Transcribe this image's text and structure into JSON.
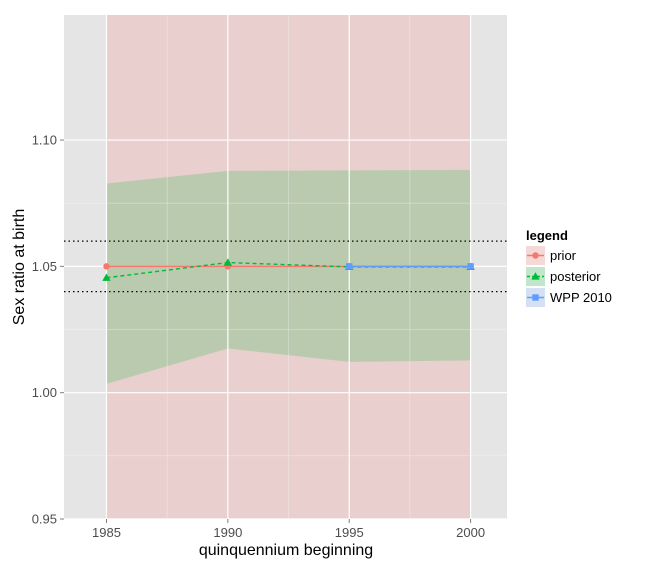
{
  "chart_data": {
    "type": "line",
    "title": "",
    "xlabel": "quinquennium beginning",
    "ylabel": "Sex ratio at birth",
    "xlim": [
      1983.25,
      2001.5
    ],
    "ylim": [
      0.95,
      1.1495
    ],
    "x_ticks": [
      1985,
      1990,
      1995,
      2000
    ],
    "x_tick_labels": [
      "1985",
      "1990",
      "1995",
      "2000"
    ],
    "y_ticks": [
      0.95,
      1.0,
      1.05,
      1.1
    ],
    "y_tick_labels": [
      "0.95",
      "1.00",
      "1.05",
      "1.10"
    ],
    "grid": true,
    "background_color": "#e5e5e5",
    "reference_lines": [
      1.04,
      1.06
    ],
    "bands": [
      {
        "name": "prior",
        "color": "#f8766d",
        "opacity": 0.2,
        "x": [
          1985,
          2000
        ],
        "lower": [
          0.95,
          0.95
        ],
        "upper": [
          1.1495,
          1.1495
        ]
      },
      {
        "name": "posterior",
        "color": "#00ba38",
        "opacity": 0.2,
        "x": [
          1985,
          1990,
          1995,
          2000
        ],
        "lower": [
          1.0035,
          1.0175,
          1.0122,
          1.0128
        ],
        "upper": [
          1.0828,
          1.0878,
          1.088,
          1.0882
        ]
      }
    ],
    "series": [
      {
        "name": "prior",
        "color": "#f8766d",
        "marker": "circle",
        "dash": "solid",
        "x": [
          1985,
          1990,
          1995,
          2000
        ],
        "values": [
          1.05,
          1.05,
          1.05,
          1.05
        ]
      },
      {
        "name": "posterior",
        "color": "#00ba38",
        "marker": "triangle",
        "dash": "dashed",
        "x": [
          1985,
          1990,
          1995,
          2000
        ],
        "values": [
          1.0455,
          1.0515,
          1.0498,
          1.0498
        ]
      },
      {
        "name": "WPP 2010",
        "color": "#619cff",
        "marker": "square",
        "dash": "solid",
        "x": [
          1995,
          2000
        ],
        "values": [
          1.05,
          1.05
        ]
      }
    ],
    "legend": {
      "title": "legend",
      "position": "right",
      "items": [
        "prior",
        "posterior",
        "WPP 2010"
      ]
    }
  }
}
